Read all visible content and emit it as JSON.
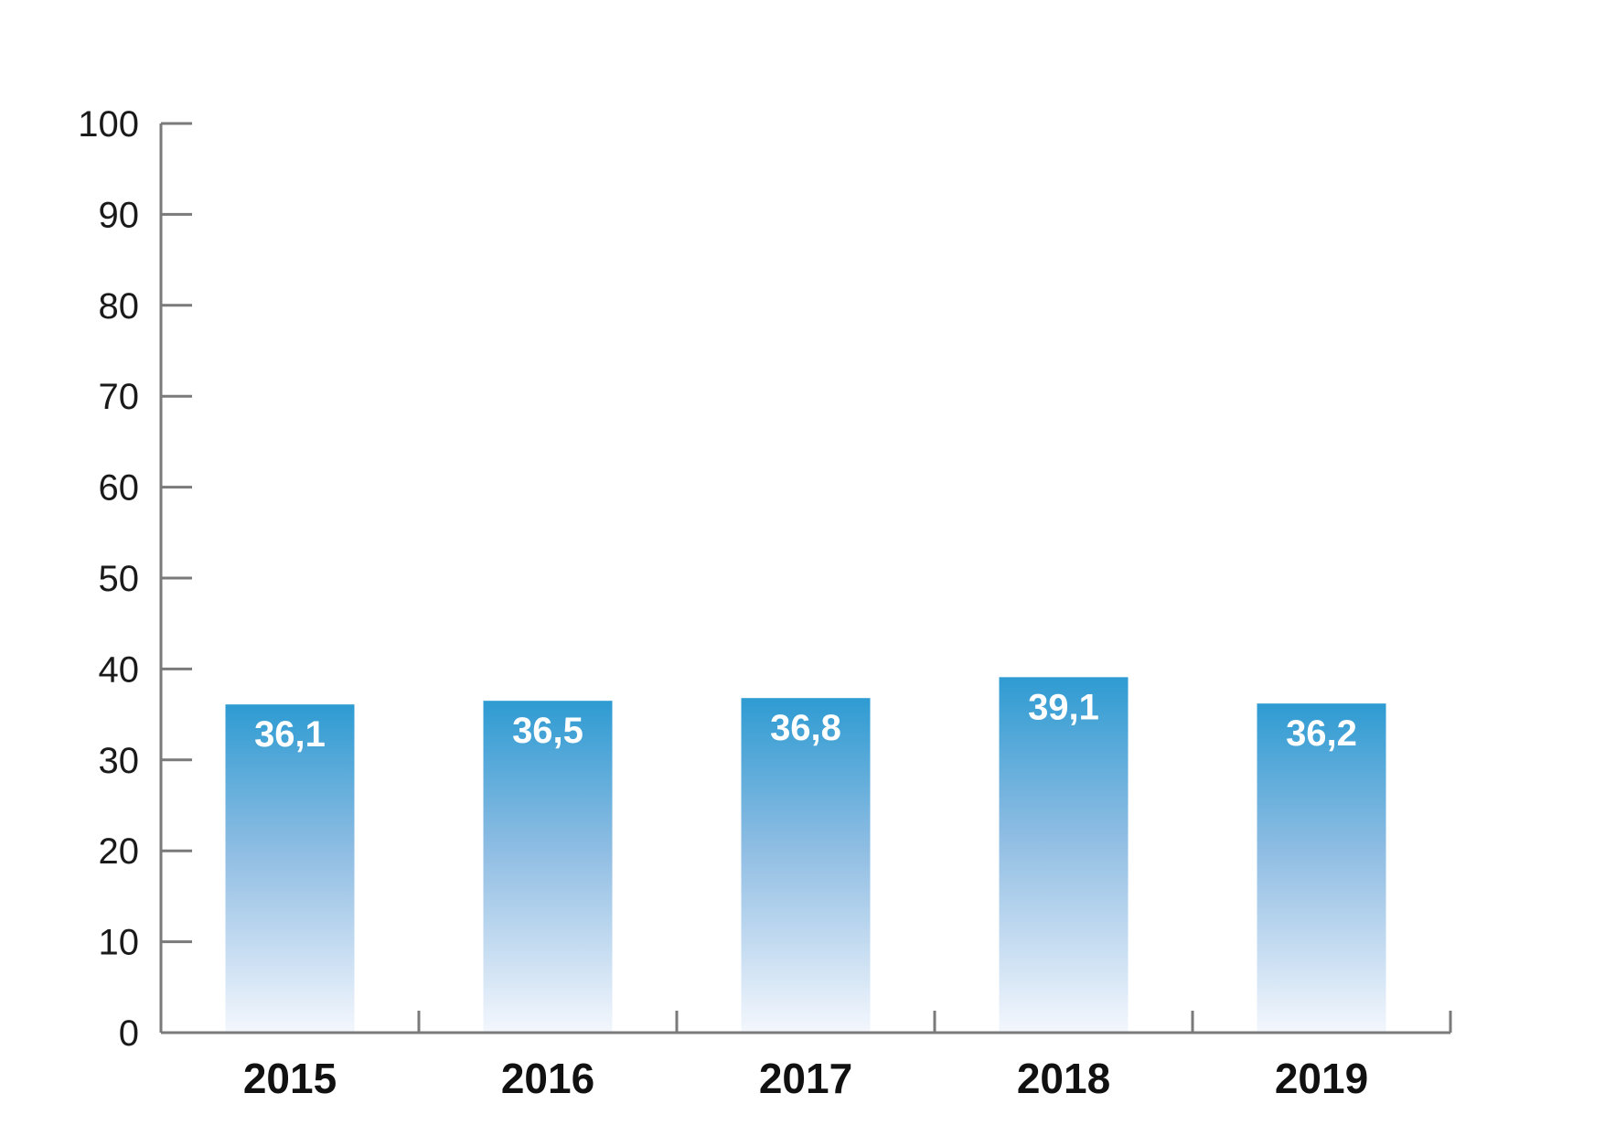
{
  "chart_data": {
    "type": "bar",
    "title": "",
    "xlabel": "",
    "ylabel": "",
    "categories": [
      "2015",
      "2016",
      "2017",
      "2018",
      "2019"
    ],
    "values": [
      36.1,
      36.5,
      36.8,
      39.1,
      36.2
    ],
    "value_labels": [
      "36,1",
      "36,5",
      "36,8",
      "39,1",
      "36,2"
    ],
    "ylim": [
      0,
      100
    ],
    "yticks": [
      0,
      10,
      20,
      30,
      40,
      50,
      60,
      70,
      80,
      90,
      100
    ],
    "ytick_labels": [
      "0",
      "10",
      "20",
      "30",
      "40",
      "50",
      "60",
      "70",
      "80",
      "90",
      "100"
    ],
    "grid": false,
    "legend": "none",
    "colors": {
      "bar_top": "#2e9bd2",
      "bar_bottom": "#f4f7fd",
      "axis": "#7a7a7a"
    }
  }
}
